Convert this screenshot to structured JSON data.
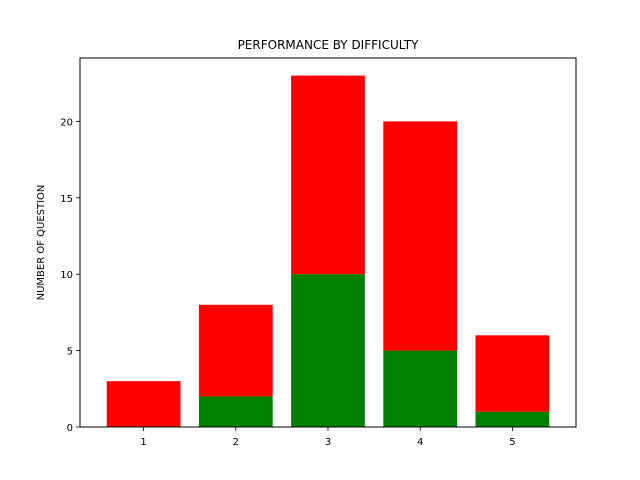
{
  "chart_data": {
    "type": "bar",
    "stacked": true,
    "title": "PERFORMANCE BY DIFFICULTY",
    "xlabel": "",
    "ylabel": "NUMBER OF QUESTION",
    "categories": [
      "1",
      "2",
      "3",
      "4",
      "5"
    ],
    "series": [
      {
        "values": [
          0,
          2,
          10,
          5,
          1
        ],
        "color": "#008000"
      },
      {
        "values": [
          3,
          6,
          13,
          15,
          5
        ],
        "color": "#ff0000"
      }
    ],
    "ylim": [
      0,
      24.15
    ],
    "yticks": [
      0,
      5,
      10,
      15,
      20
    ],
    "grid": false,
    "legend": "none"
  }
}
